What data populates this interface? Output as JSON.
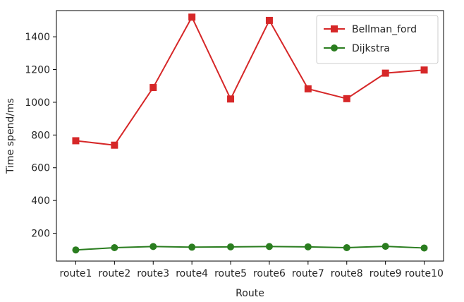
{
  "chart_data": {
    "type": "line",
    "title": "",
    "xlabel": "Route",
    "ylabel": "Time spend/ms",
    "categories": [
      "route1",
      "route2",
      "route3",
      "route4",
      "route5",
      "route6",
      "route7",
      "route8",
      "route9",
      "route10"
    ],
    "yticks": [
      200,
      400,
      600,
      800,
      1000,
      1200,
      1400
    ],
    "ylim": [
      30,
      1560
    ],
    "grid": false,
    "legend_position": "top-right",
    "series": [
      {
        "name": "Bellman_ford",
        "color": "#d62728",
        "marker": "square",
        "values": [
          765,
          738,
          1090,
          1520,
          1020,
          1500,
          1082,
          1022,
          1178,
          1197
        ]
      },
      {
        "name": "Dijkstra",
        "color": "#2a7d1f",
        "marker": "circle",
        "values": [
          98,
          112,
          119,
          115,
          117,
          119,
          117,
          112,
          120,
          110
        ]
      }
    ]
  }
}
